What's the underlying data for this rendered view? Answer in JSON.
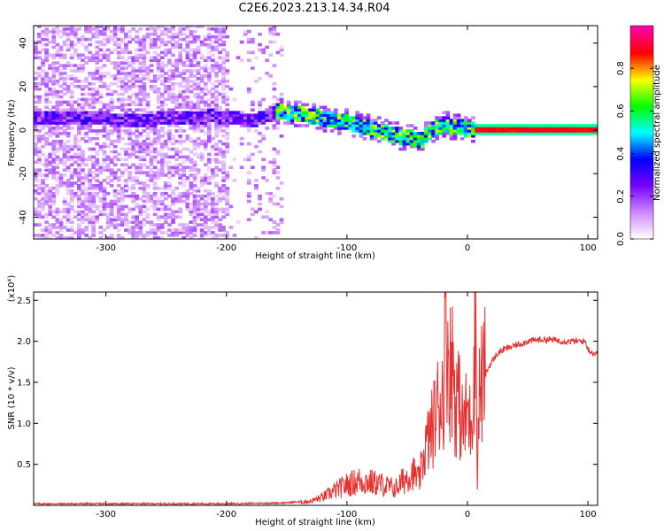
{
  "title": "C2E6.2023.213.14.34.R04",
  "chart_data": [
    {
      "type": "heatmap",
      "xlabel": "Height of straight line (km)",
      "ylabel": "Frequency (Hz)",
      "xlim": [
        -360,
        108
      ],
      "ylim": [
        -50,
        48
      ],
      "xticks": [
        -300,
        -200,
        -100,
        0,
        100
      ],
      "yticks": [
        -40,
        -20,
        0,
        20,
        40
      ],
      "colorbar": {
        "label": "Normalized spectral amplitude",
        "range": [
          0.0,
          1.0
        ],
        "ticks": [
          0.0,
          0.2,
          0.4,
          0.6,
          0.8
        ],
        "colors": [
          "#ffffff",
          "#cc88ff",
          "#7700ff",
          "#0000ff",
          "#00ffff",
          "#00ff00",
          "#ffff00",
          "#ff0000",
          "#ff00aa"
        ]
      },
      "ridge": {
        "description_points_x": [
          -310,
          -280,
          -210,
          -180,
          -160,
          -140,
          -120,
          -100,
          -80,
          -60,
          -40,
          -30,
          -20,
          -10,
          0,
          10,
          50,
          108
        ],
        "description_points_y": [
          5,
          4,
          6,
          4,
          8,
          7,
          5,
          3,
          0,
          -3,
          -5,
          0,
          2,
          1,
          0,
          0,
          0,
          0
        ]
      }
    },
    {
      "type": "line",
      "xlabel": "Height of straight line (km)",
      "ylabel": "SNR (10 * v/v)",
      "yscale_label": "(x10⁴)",
      "xlim": [
        -360,
        108
      ],
      "ylim": [
        0,
        2.6
      ],
      "xticks": [
        -300,
        -200,
        -100,
        0,
        100
      ],
      "yticks": [
        0.5,
        1.0,
        1.5,
        2.0,
        2.5
      ],
      "series": [
        {
          "color": "#e83030",
          "x": [
            -360,
            -200,
            -150,
            -130,
            -120,
            -110,
            -100,
            -90,
            -80,
            -70,
            -60,
            -50,
            -45,
            -40,
            -35,
            -30,
            -25,
            -20,
            -18,
            -15,
            -12,
            -10,
            -8,
            -5,
            -2,
            0,
            2,
            5,
            7,
            8,
            10,
            15,
            20,
            25,
            30,
            40,
            50,
            60,
            70,
            80,
            90,
            98,
            100,
            105,
            108
          ],
          "y": [
            0.01,
            0.01,
            0.02,
            0.05,
            0.1,
            0.18,
            0.25,
            0.3,
            0.28,
            0.25,
            0.2,
            0.35,
            0.4,
            0.3,
            0.7,
            0.9,
            1.2,
            1.4,
            2.4,
            1.6,
            1.8,
            1.2,
            1.4,
            1.0,
            1.0,
            1.2,
            1.0,
            1.4,
            2.5,
            0.3,
            1.4,
            1.6,
            1.75,
            1.85,
            1.9,
            1.95,
            2.0,
            2.02,
            2.02,
            2.0,
            2.0,
            2.0,
            1.9,
            1.85,
            1.85
          ]
        }
      ]
    }
  ]
}
